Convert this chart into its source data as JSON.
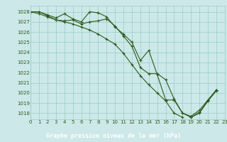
{
  "bg_color": "#cce8e8",
  "grid_color": "#99cccc",
  "line_color": "#2d5a1b",
  "footer_bg": "#2d5a1b",
  "footer_text": "Graphe pression niveau de la mer (hPa)",
  "xlim": [
    0,
    23
  ],
  "ylim": [
    1017.4,
    1028.6
  ],
  "yticks": [
    1018,
    1019,
    1020,
    1021,
    1022,
    1023,
    1024,
    1025,
    1026,
    1027,
    1028
  ],
  "xticks": [
    0,
    1,
    2,
    3,
    4,
    5,
    6,
    7,
    8,
    9,
    10,
    11,
    12,
    13,
    14,
    15,
    16,
    17,
    18,
    19,
    20,
    21,
    22,
    23
  ],
  "series": [
    [
      1028.0,
      1028.0,
      1027.7,
      1027.4,
      1027.8,
      1027.3,
      1027.0,
      1028.0,
      1027.9,
      1027.5,
      1026.5,
      1025.8,
      1025.0,
      1023.2,
      1024.2,
      1021.8,
      1019.3,
      1019.3,
      1018.0,
      1017.6,
      1018.0,
      1019.2,
      1020.2,
      null
    ],
    [
      1028.0,
      1028.0,
      1027.6,
      1027.2,
      1027.1,
      1027.2,
      1026.8,
      1027.0,
      1027.1,
      1027.3,
      1026.6,
      1025.6,
      1024.6,
      1022.5,
      1021.9,
      1021.9,
      1021.3,
      1019.4,
      1018.0,
      1017.7,
      1018.3,
      1019.3,
      1020.3,
      null
    ],
    [
      1028.0,
      1027.8,
      1027.5,
      1027.2,
      1027.0,
      1026.8,
      1026.5,
      1026.2,
      1025.8,
      1025.3,
      1024.8,
      1023.9,
      1022.8,
      1021.7,
      1020.8,
      1020.0,
      1019.2,
      1018.0,
      1017.6,
      null,
      null,
      null,
      null,
      null
    ],
    [
      null,
      null,
      null,
      null,
      null,
      null,
      null,
      null,
      null,
      null,
      null,
      null,
      null,
      null,
      null,
      null,
      null,
      null,
      null,
      1017.6,
      1018.1,
      1019.2,
      1020.3,
      null
    ]
  ]
}
